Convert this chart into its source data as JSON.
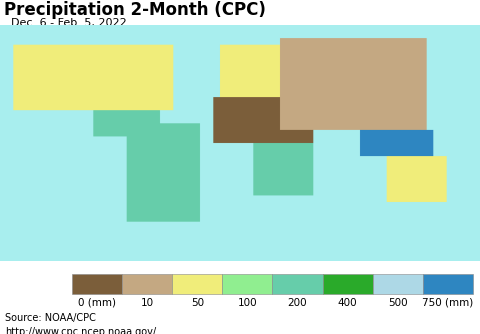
{
  "title": "Precipitation 2-Month (CPC)",
  "subtitle": "Dec. 6 - Feb. 5, 2022",
  "source_line1": "Source: NOAA/CPC",
  "source_line2": "http://www.cpc.ncep.noaa.gov/",
  "colorbar_labels": [
    "0 (mm)",
    "10",
    "50",
    "100",
    "200",
    "400",
    "500",
    "750 (mm)"
  ],
  "colorbar_colors": [
    "#7B5E3A",
    "#C4A882",
    "#F0ED7A",
    "#90EE90",
    "#66CDAA",
    "#2AAA2A",
    "#ADD8E6",
    "#2E86C1"
  ],
  "ocean_color": "#A8EEEE",
  "bg_color": "#E8E8E8",
  "title_fontsize": 12,
  "subtitle_fontsize": 8,
  "source_fontsize": 7,
  "cb_label_fontsize": 7.5,
  "fig_width": 4.8,
  "fig_height": 3.34,
  "dpi": 100,
  "country_colors": {
    "United States of America": "#F0ED7A",
    "Canada": "#C4A882",
    "Mexico": "#90EE90",
    "Cuba": "#66CDAA",
    "Haiti": "#90EE90",
    "Dominican Rep.": "#90EE90",
    "Jamaica": "#66CDAA",
    "Guatemala": "#66CDAA",
    "Belize": "#66CDAA",
    "Honduras": "#66CDAA",
    "El Salvador": "#90EE90",
    "Nicaragua": "#66CDAA",
    "Costa Rica": "#2AAA2A",
    "Panama": "#2AAA2A",
    "Trinidad and Tobago": "#66CDAA",
    "Brazil": "#66CDAA",
    "Colombia": "#2AAA2A",
    "Venezuela": "#66CDAA",
    "Guyana": "#2AAA2A",
    "Suriname": "#2AAA2A",
    "Fr. Guiana": "#2AAA2A",
    "Ecuador": "#2AAA2A",
    "Peru": "#90EE90",
    "Bolivia": "#66CDAA",
    "Paraguay": "#90EE90",
    "Chile": "#C4A882",
    "Argentina": "#F0ED7A",
    "Uruguay": "#90EE90",
    "France": "#90EE90",
    "Spain": "#F0ED7A",
    "Portugal": "#90EE90",
    "United Kingdom": "#66CDAA",
    "Ireland": "#66CDAA",
    "Germany": "#90EE90",
    "Italy": "#90EE90",
    "Norway": "#90EE90",
    "Sweden": "#F0ED7A",
    "Finland": "#F0ED7A",
    "Poland": "#F0ED7A",
    "Ukraine": "#C4A882",
    "Russia": "#C4A882",
    "Belarus": "#C4A882",
    "Romania": "#F0ED7A",
    "Bulgaria": "#F0ED7A",
    "Greece": "#F0ED7A",
    "Iceland": "#90EE90",
    "Denmark": "#90EE90",
    "Netherlands": "#90EE90",
    "Belgium": "#90EE90",
    "Luxembourg": "#90EE90",
    "Switzerland": "#90EE90",
    "Austria": "#90EE90",
    "Czech Rep.": "#F0ED7A",
    "Slovakia": "#F0ED7A",
    "Hungary": "#F0ED7A",
    "Serbia": "#F0ED7A",
    "Croatia": "#90EE90",
    "Bosnia and Herz.": "#90EE90",
    "Albania": "#90EE90",
    "North Macedonia": "#F0ED7A",
    "Slovenia": "#90EE90",
    "Latvia": "#F0ED7A",
    "Lithuania": "#F0ED7A",
    "Estonia": "#F0ED7A",
    "Moldova": "#F0ED7A",
    "Azerbaijan": "#F0ED7A",
    "Armenia": "#F0ED7A",
    "Georgia": "#90EE90",
    "Morocco": "#C4A882",
    "Algeria": "#7B5E3A",
    "Libya": "#7B5E3A",
    "Egypt": "#7B5E3A",
    "Tunisia": "#C4A882",
    "W. Sahara": "#7B5E3A",
    "Mauritania": "#7B5E3A",
    "Senegal": "#C4A882",
    "Gambia": "#C4A882",
    "Guinea-Bissau": "#66CDAA",
    "Guinea": "#66CDAA",
    "Sierra Leone": "#66CDAA",
    "Liberia": "#66CDAA",
    "Ivory Coast": "#66CDAA",
    "Ghana": "#90EE90",
    "Togo": "#90EE90",
    "Benin": "#90EE90",
    "Nigeria": "#C4A882",
    "Burkina Faso": "#C4A882",
    "Mali": "#7B5E3A",
    "Niger": "#7B5E3A",
    "Chad": "#7B5E3A",
    "Sudan": "#7B5E3A",
    "S. Sudan": "#C4A882",
    "South Sudan": "#C4A882",
    "Ethiopia": "#C4A882",
    "Eritrea": "#7B5E3A",
    "Somalia": "#7B5E3A",
    "Djibouti": "#7B5E3A",
    "Kenya": "#90EE90",
    "Uganda": "#66CDAA",
    "Rwanda": "#66CDAA",
    "Burundi": "#66CDAA",
    "Tanzania": "#66CDAA",
    "Cameroon": "#90EE90",
    "Eq. Guinea": "#66CDAA",
    "Gabon": "#66CDAA",
    "Congo": "#C4A882",
    "Dem. Rep. Congo": "#7B5E3A",
    "Central African Rep.": "#C4A882",
    "Angola": "#90EE90",
    "Zambia": "#66CDAA",
    "Malawi": "#66CDAA",
    "Zimbabwe": "#66CDAA",
    "Mozambique": "#66CDAA",
    "Madagascar": "#66CDAA",
    "South Africa": "#90EE90",
    "Namibia": "#C4A882",
    "Botswana": "#90EE90",
    "Lesotho": "#90EE90",
    "eSwatini": "#66CDAA",
    "Swaziland": "#66CDAA",
    "Turkey": "#F0ED7A",
    "Syria": "#C4A882",
    "Lebanon": "#F0ED7A",
    "Israel": "#F0ED7A",
    "Palestine": "#F0ED7A",
    "Jordan": "#C4A882",
    "Iran": "#C4A882",
    "Iraq": "#C4A882",
    "Saudi Arabia": "#7B5E3A",
    "Yemen": "#7B5E3A",
    "Oman": "#7B5E3A",
    "UAE": "#7B5E3A",
    "Qatar": "#7B5E3A",
    "Kuwait": "#7B5E3A",
    "Bahrain": "#7B5E3A",
    "Cyprus": "#F0ED7A",
    "Afghanistan": "#7B5E3A",
    "Pakistan": "#7B5E3A",
    "India": "#F0ED7A",
    "Sri Lanka": "#66CDAA",
    "Bangladesh": "#90EE90",
    "Nepal": "#F0ED7A",
    "Bhutan": "#90EE90",
    "Myanmar": "#66CDAA",
    "Thailand": "#90EE90",
    "Vietnam": "#66CDAA",
    "Cambodia": "#90EE90",
    "Laos": "#90EE90",
    "Malaysia": "#2E86C1",
    "Indonesia": "#2E86C1",
    "Philippines": "#ADD8E6",
    "Papua New Guinea": "#2E86C1",
    "East Timor": "#2AAA2A",
    "China": "#F0ED7A",
    "Mongolia": "#C4A882",
    "Kazakhstan": "#C4A882",
    "Uzbekistan": "#C4A882",
    "Turkmenistan": "#7B5E3A",
    "Tajikistan": "#C4A882",
    "Kyrgyzstan": "#C4A882",
    "Japan": "#66CDAA",
    "South Korea": "#90EE90",
    "North Korea": "#90EE90",
    "Taiwan": "#66CDAA",
    "Australia": "#F0ED7A",
    "New Zealand": "#66CDAA",
    "Fiji": "#ADD8E6",
    "Solomon Is.": "#ADD8E6",
    "Vanuatu": "#ADD8E6"
  }
}
